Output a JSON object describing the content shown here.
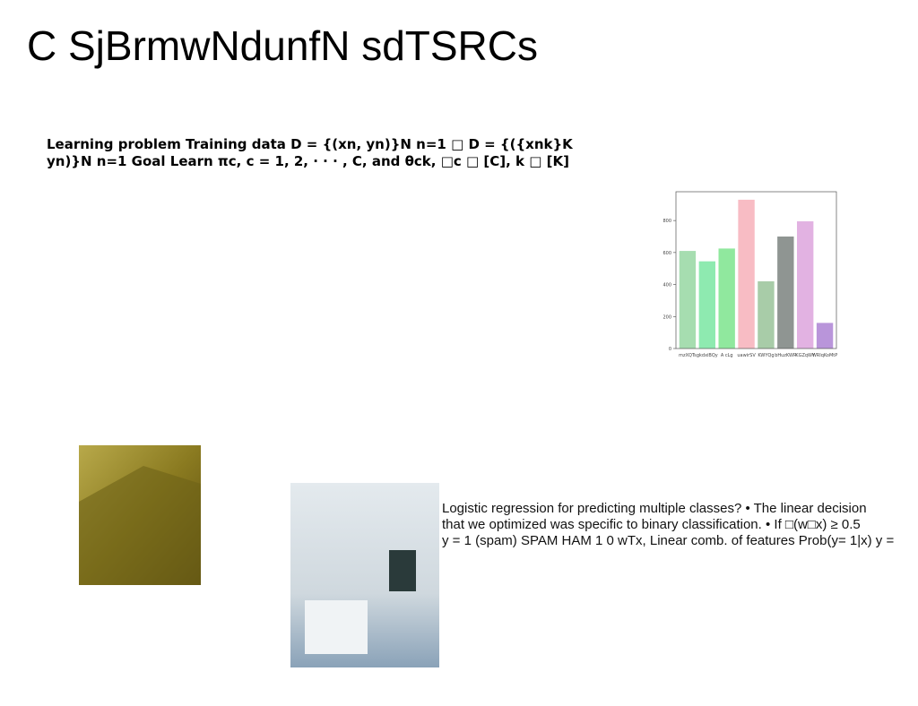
{
  "title": "C SjBrmwNdunfN sdTSRCs",
  "problem_text": {
    "lines": [
      "Learning problem Training data D = {(xn, yn)}N n=1 □ D = {({xnk}K",
      "yn)}N n=1 Goal Learn πc, c = 1, 2, · · · , C, and θck, □c □ [C], k □ [K]"
    ]
  },
  "chart": {
    "type": "bar",
    "categories": [
      "mzXQTs",
      "gkdxiBQy",
      "A cLg",
      "uawirSV",
      "KWYQg",
      "bHuzKWR",
      "KGZqWY",
      "WRIqKoMtP"
    ],
    "values": [
      610,
      545,
      625,
      930,
      420,
      700,
      795,
      160
    ],
    "colors": [
      "#a6ddb0",
      "#8eeab0",
      "#90e89e",
      "#f8bcc4",
      "#a8cca8",
      "#8f9592",
      "#e2b2e2",
      "#b995da"
    ],
    "ylim": [
      0,
      980
    ],
    "yticks": [
      0,
      200,
      400,
      600,
      800
    ]
  },
  "regression_text": {
    "lines": [
      "Logistic regression for predicting multiple classes? • The linear decision",
      "that we optimized was specific to binary classification. • If □(w□x) ≥ 0.5",
      "y = 1 (spam) SPAM HAM 1 0 wTx, Linear comb. of features Prob(y= 1|x) y ="
    ]
  }
}
